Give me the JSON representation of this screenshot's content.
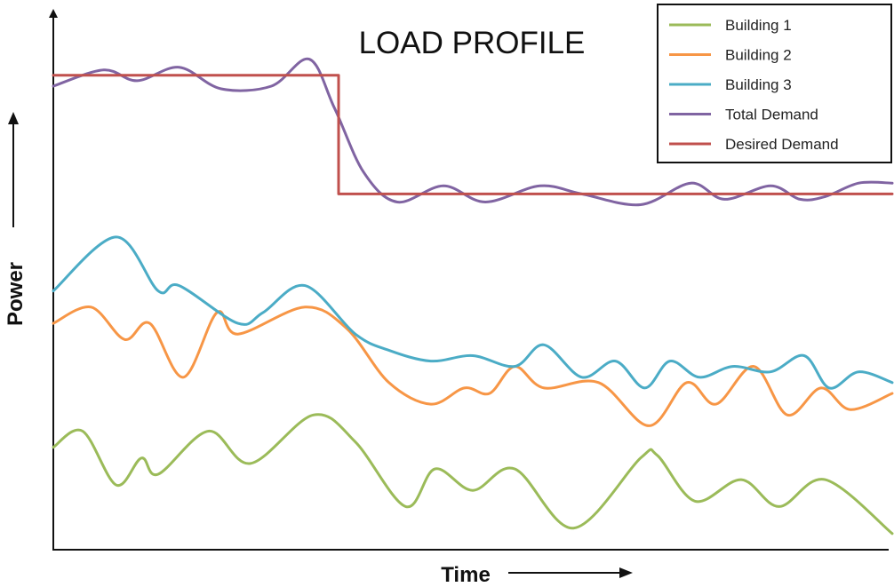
{
  "chart_data": {
    "type": "line",
    "title": "LOAD PROFILE",
    "xlabel": "Time",
    "ylabel": "Power",
    "xlim": [
      0,
      100
    ],
    "ylim": [
      0,
      100
    ],
    "grid": false,
    "axis_ticks": false,
    "legend_position": "top-right",
    "series": [
      {
        "name": "Building 1",
        "color": "#9bbb59",
        "points": [
          [
            0,
            19
          ],
          [
            3.5,
            22
          ],
          [
            7.5,
            12
          ],
          [
            10.5,
            17
          ],
          [
            12.5,
            14
          ],
          [
            18.5,
            22
          ],
          [
            23.5,
            16
          ],
          [
            31,
            25
          ],
          [
            36,
            20
          ],
          [
            42,
            8
          ],
          [
            45.5,
            15
          ],
          [
            50,
            11
          ],
          [
            55,
            15
          ],
          [
            62,
            4
          ],
          [
            70,
            17
          ],
          [
            72,
            17.5
          ],
          [
            76.5,
            9
          ],
          [
            82,
            13
          ],
          [
            86.5,
            8
          ],
          [
            92,
            13
          ],
          [
            100,
            3
          ]
        ]
      },
      {
        "name": "Building 2",
        "color": "#f79646",
        "points": [
          [
            0,
            42
          ],
          [
            4.5,
            45
          ],
          [
            8.5,
            39
          ],
          [
            11.5,
            42
          ],
          [
            15.5,
            32
          ],
          [
            19.5,
            44
          ],
          [
            22,
            40
          ],
          [
            30,
            45
          ],
          [
            35,
            41
          ],
          [
            40,
            31
          ],
          [
            45,
            27
          ],
          [
            49,
            30
          ],
          [
            52,
            29
          ],
          [
            55,
            34
          ],
          [
            58.5,
            30
          ],
          [
            65,
            31
          ],
          [
            71,
            23
          ],
          [
            75.5,
            31
          ],
          [
            79,
            27
          ],
          [
            83.5,
            34
          ],
          [
            87.5,
            25
          ],
          [
            91.5,
            30
          ],
          [
            95,
            26
          ],
          [
            100,
            29
          ]
        ]
      },
      {
        "name": "Building 3",
        "color": "#4bacc6",
        "points": [
          [
            0,
            48
          ],
          [
            7.5,
            58
          ],
          [
            12.5,
            48
          ],
          [
            15,
            49
          ],
          [
            22,
            42
          ],
          [
            25,
            44
          ],
          [
            30,
            49
          ],
          [
            36,
            40
          ],
          [
            40,
            37
          ],
          [
            45,
            35
          ],
          [
            50,
            36
          ],
          [
            55,
            34
          ],
          [
            58.5,
            38
          ],
          [
            63,
            32
          ],
          [
            67,
            35
          ],
          [
            70.5,
            30
          ],
          [
            73.5,
            35
          ],
          [
            77,
            32
          ],
          [
            81,
            34
          ],
          [
            85.5,
            33
          ],
          [
            89.5,
            36
          ],
          [
            92.5,
            30
          ],
          [
            96,
            33
          ],
          [
            100,
            31
          ]
        ]
      },
      {
        "name": "Total Demand",
        "color": "#8064a2",
        "points": [
          [
            0,
            86
          ],
          [
            6,
            89
          ],
          [
            10,
            87
          ],
          [
            15,
            89.5
          ],
          [
            20,
            85.5
          ],
          [
            26,
            86
          ],
          [
            30.5,
            91
          ],
          [
            33.5,
            82
          ],
          [
            37,
            70
          ],
          [
            41,
            64.5
          ],
          [
            46.5,
            67.5
          ],
          [
            51.5,
            64.5
          ],
          [
            58,
            67.5
          ],
          [
            63,
            66
          ],
          [
            70,
            64
          ],
          [
            76,
            68
          ],
          [
            80,
            65
          ],
          [
            85.5,
            67.5
          ],
          [
            89,
            65
          ],
          [
            92,
            65.5
          ],
          [
            96,
            68
          ],
          [
            100,
            68
          ]
        ]
      },
      {
        "name": "Desired Demand",
        "color": "#c0504d",
        "points": [
          [
            0,
            88
          ],
          [
            34,
            88
          ],
          [
            34,
            66
          ],
          [
            100,
            66
          ]
        ]
      }
    ]
  }
}
